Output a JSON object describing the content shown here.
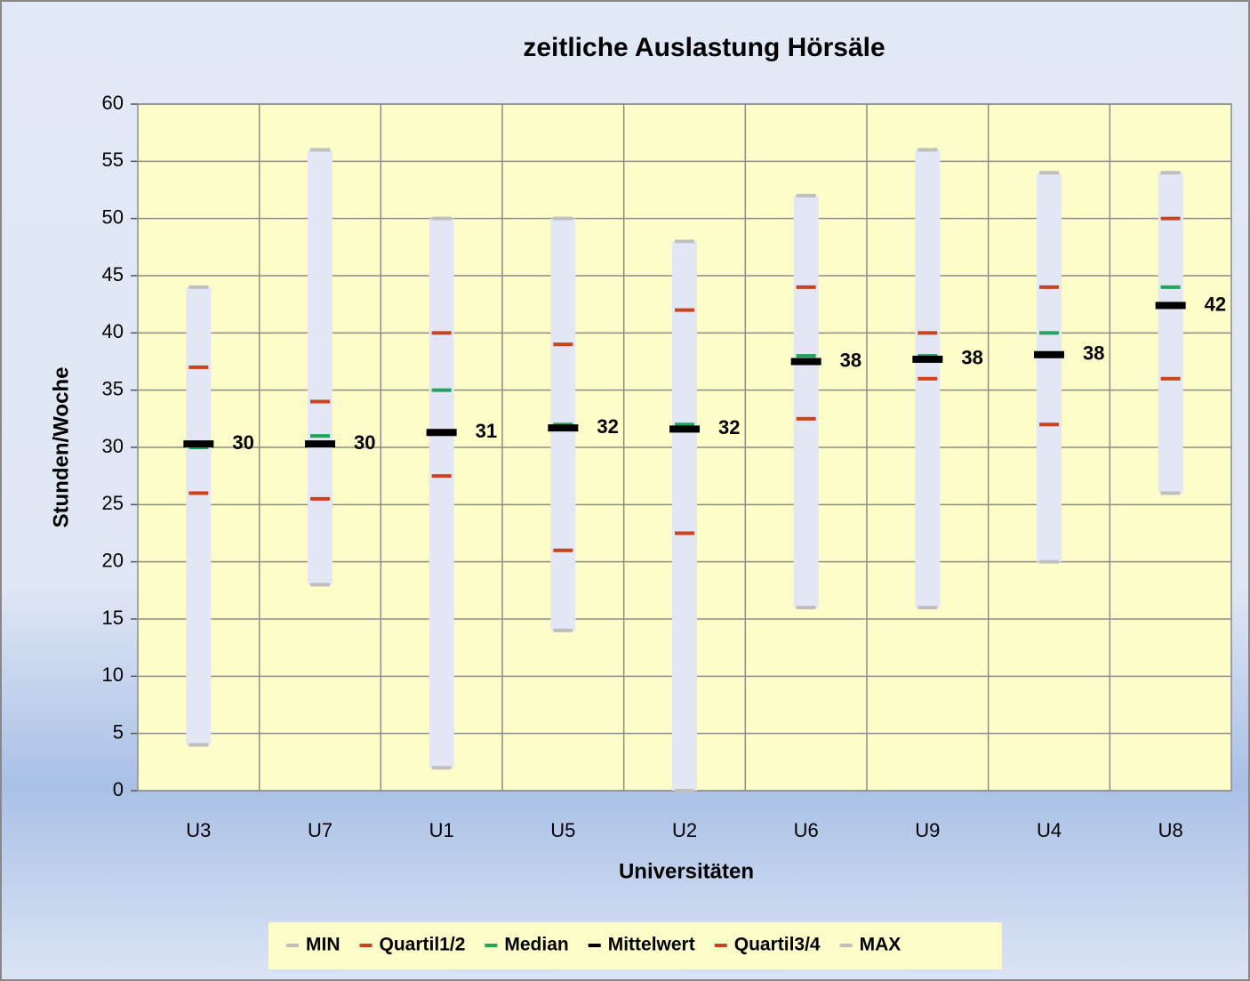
{
  "chart_data": {
    "type": "range_markers",
    "title": "zeitliche Auslastung Hörsäle",
    "x_label": "Universitäten",
    "y_label": "Stunden/Woche",
    "categories": [
      "U3",
      "U7",
      "U1",
      "U5",
      "U2",
      "U6",
      "U9",
      "U4",
      "U8"
    ],
    "series": [
      {
        "name": "MIN",
        "color": "#bfbfbf",
        "values": [
          4,
          18,
          2,
          14,
          0,
          16,
          16,
          20,
          26
        ]
      },
      {
        "name": "Quartil1/2",
        "color": "#c9431c",
        "values": [
          26,
          25.5,
          27.5,
          21,
          22.5,
          32.5,
          36,
          32,
          36
        ]
      },
      {
        "name": "Median",
        "color": "#1fa55c",
        "values": [
          30,
          31,
          35,
          32,
          32,
          38,
          38,
          40,
          44
        ]
      },
      {
        "name": "Mittelwert",
        "color": "#000000",
        "values": [
          30.3,
          30.3,
          31.3,
          31.7,
          31.6,
          37.5,
          37.7,
          38.1,
          42.4
        ],
        "value_labels": [
          "30",
          "30",
          "31",
          "32",
          "32",
          "38",
          "38",
          "38",
          "42"
        ]
      },
      {
        "name": "Quartil3/4",
        "color": "#c9431c",
        "values": [
          37,
          34,
          40,
          39,
          42,
          44,
          40,
          44,
          50
        ]
      },
      {
        "name": "MAX",
        "color": "#bfbfbf",
        "values": [
          44,
          56,
          50,
          50,
          48,
          52,
          56,
          54,
          54
        ]
      }
    ],
    "range_color": "#e3e6f4",
    "ylim": [
      0,
      60
    ],
    "yticks": [
      0,
      5,
      10,
      15,
      20,
      25,
      30,
      35,
      40,
      45,
      50,
      55,
      60
    ],
    "grid": true,
    "legend": "bottom"
  }
}
